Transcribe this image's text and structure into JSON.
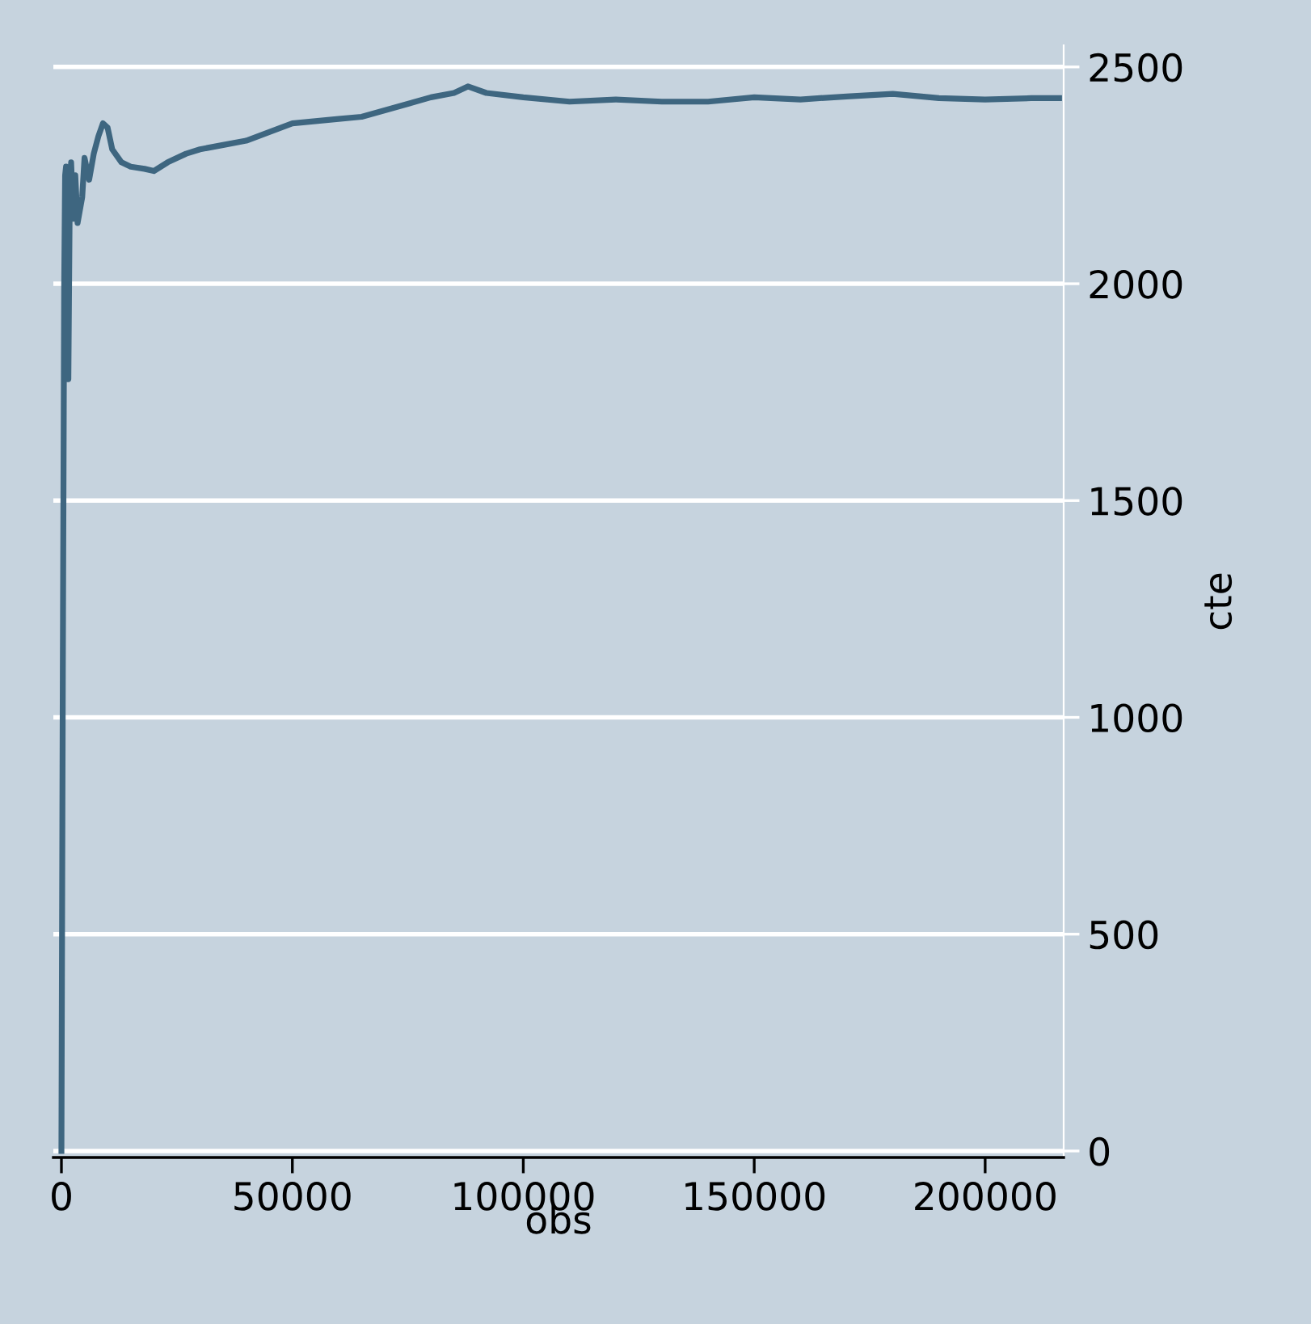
{
  "chart_data": {
    "type": "line",
    "xlabel": "obs",
    "ylabel": "cte",
    "x": [
      0,
      300,
      600,
      800,
      1000,
      1200,
      1500,
      1800,
      2100,
      2600,
      3000,
      3500,
      4500,
      5000,
      6000,
      7000,
      8000,
      9000,
      10000,
      11000,
      13000,
      15000,
      18000,
      20000,
      23000,
      27000,
      30000,
      35000,
      40000,
      45000,
      50000,
      55000,
      60000,
      65000,
      70000,
      75000,
      80000,
      85000,
      88000,
      92000,
      100000,
      110000,
      120000,
      130000,
      140000,
      150000,
      160000,
      170000,
      180000,
      190000,
      200000,
      210000,
      216000
    ],
    "series": [
      {
        "color": "#3e6680",
        "values": [
          0,
          1100,
          2000,
          2250,
          2270,
          1800,
          1780,
          2200,
          2280,
          2150,
          2250,
          2140,
          2200,
          2290,
          2240,
          2300,
          2340,
          2370,
          2360,
          2310,
          2280,
          2270,
          2265,
          2260,
          2280,
          2300,
          2310,
          2320,
          2330,
          2350,
          2370,
          2375,
          2380,
          2385,
          2400,
          2415,
          2430,
          2440,
          2455,
          2440,
          2430,
          2420,
          2425,
          2420,
          2420,
          2430,
          2425,
          2432,
          2438,
          2428,
          2425,
          2428,
          2428
        ]
      }
    ],
    "xlim": [
      -1750,
      217000
    ],
    "ylim": [
      -15,
      2550
    ],
    "xticks": [
      0,
      50000,
      100000,
      150000,
      200000
    ],
    "yticks": [
      0,
      500,
      1000,
      1500,
      2000,
      2500
    ],
    "grid": "y",
    "line_style": "solid",
    "marker": "none",
    "legend": false
  }
}
